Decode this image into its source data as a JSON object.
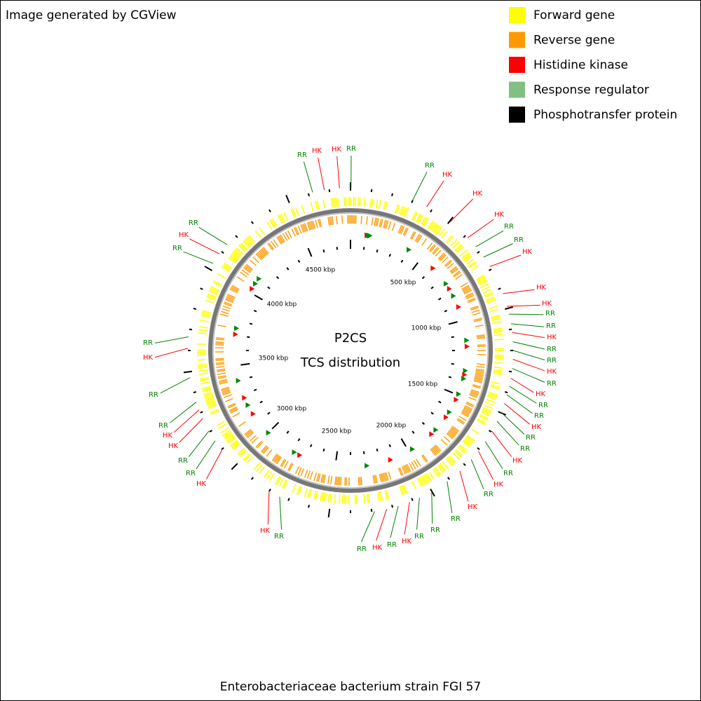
{
  "header": "Image generated by CGView",
  "legend": {
    "items": [
      {
        "label": "Forward gene",
        "color": "#ffff00"
      },
      {
        "label": "Reverse gene",
        "color": "#ff9900"
      },
      {
        "label": "Histidine kinase",
        "color": "#ff0000"
      },
      {
        "label": "Response regulator",
        "color": "#80c080"
      },
      {
        "label": "Phosphotransfer protein",
        "color": "#000000"
      }
    ]
  },
  "center": {
    "title": "P2CS",
    "subtitle": "TCS distribution"
  },
  "scale_labels": [
    "500 kbp",
    "1000 kbp",
    "1500 kbp",
    "2000 kbp",
    "2500 kbp",
    "3000 kbp",
    "3500 kbp",
    "4000 kbp",
    "4500 kbp"
  ],
  "features": [
    {
      "label": "RR",
      "color": "#008000"
    },
    {
      "label": "HK",
      "color": "#ff0000"
    },
    {
      "label": "HK",
      "color": "#ff0000"
    },
    {
      "label": "RR",
      "color": "#008000"
    },
    {
      "label": "RR",
      "color": "#008000"
    },
    {
      "label": "HK",
      "color": "#ff0000"
    },
    {
      "label": "HK",
      "color": "#ff0000"
    },
    {
      "label": "HK",
      "color": "#ff0000"
    },
    {
      "label": "RR",
      "color": "#008000"
    },
    {
      "label": "RR",
      "color": "#008000"
    },
    {
      "label": "HK",
      "color": "#ff0000"
    },
    {
      "label": "HK",
      "color": "#ff0000"
    },
    {
      "label": "HK",
      "color": "#ff0000"
    },
    {
      "label": "RR",
      "color": "#008000"
    },
    {
      "label": "RR",
      "color": "#008000"
    },
    {
      "label": "HK",
      "color": "#ff0000"
    },
    {
      "label": "RR",
      "color": "#008000"
    },
    {
      "label": "RR",
      "color": "#008000"
    },
    {
      "label": "HK",
      "color": "#ff0000"
    },
    {
      "label": "RR",
      "color": "#008000"
    },
    {
      "label": "HK",
      "color": "#ff0000"
    },
    {
      "label": "RR",
      "color": "#008000"
    },
    {
      "label": "RR",
      "color": "#008000"
    },
    {
      "label": "HK",
      "color": "#ff0000"
    },
    {
      "label": "RR",
      "color": "#008000"
    },
    {
      "label": "RR",
      "color": "#008000"
    },
    {
      "label": "HK",
      "color": "#ff0000"
    },
    {
      "label": "RR",
      "color": "#008000"
    },
    {
      "label": "HK",
      "color": "#ff0000"
    },
    {
      "label": "RR",
      "color": "#008000"
    },
    {
      "label": "HK",
      "color": "#ff0000"
    },
    {
      "label": "RR",
      "color": "#008000"
    },
    {
      "label": "RR",
      "color": "#008000"
    },
    {
      "label": "RR",
      "color": "#008000"
    },
    {
      "label": "HK",
      "color": "#ff0000"
    },
    {
      "label": "RR",
      "color": "#008000"
    },
    {
      "label": "HK",
      "color": "#ff0000"
    },
    {
      "label": "RR",
      "color": "#008000"
    },
    {
      "label": "HK",
      "color": "#ff0000"
    },
    {
      "label": "RR",
      "color": "#008000"
    },
    {
      "label": "HK",
      "color": "#ff0000"
    },
    {
      "label": "RR",
      "color": "#008000"
    },
    {
      "label": "RR",
      "color": "#008000"
    },
    {
      "label": "HK",
      "color": "#ff0000"
    },
    {
      "label": "HK",
      "color": "#ff0000"
    },
    {
      "label": "RR",
      "color": "#008000"
    },
    {
      "label": "RR",
      "color": "#008000"
    },
    {
      "label": "HK",
      "color": "#ff0000"
    },
    {
      "label": "RR",
      "color": "#008000"
    },
    {
      "label": "RR",
      "color": "#008000"
    },
    {
      "label": "HK",
      "color": "#ff0000"
    },
    {
      "label": "RR",
      "color": "#008000"
    }
  ],
  "footer": "Enterobacteriaceae bacterium strain FGI 57"
}
